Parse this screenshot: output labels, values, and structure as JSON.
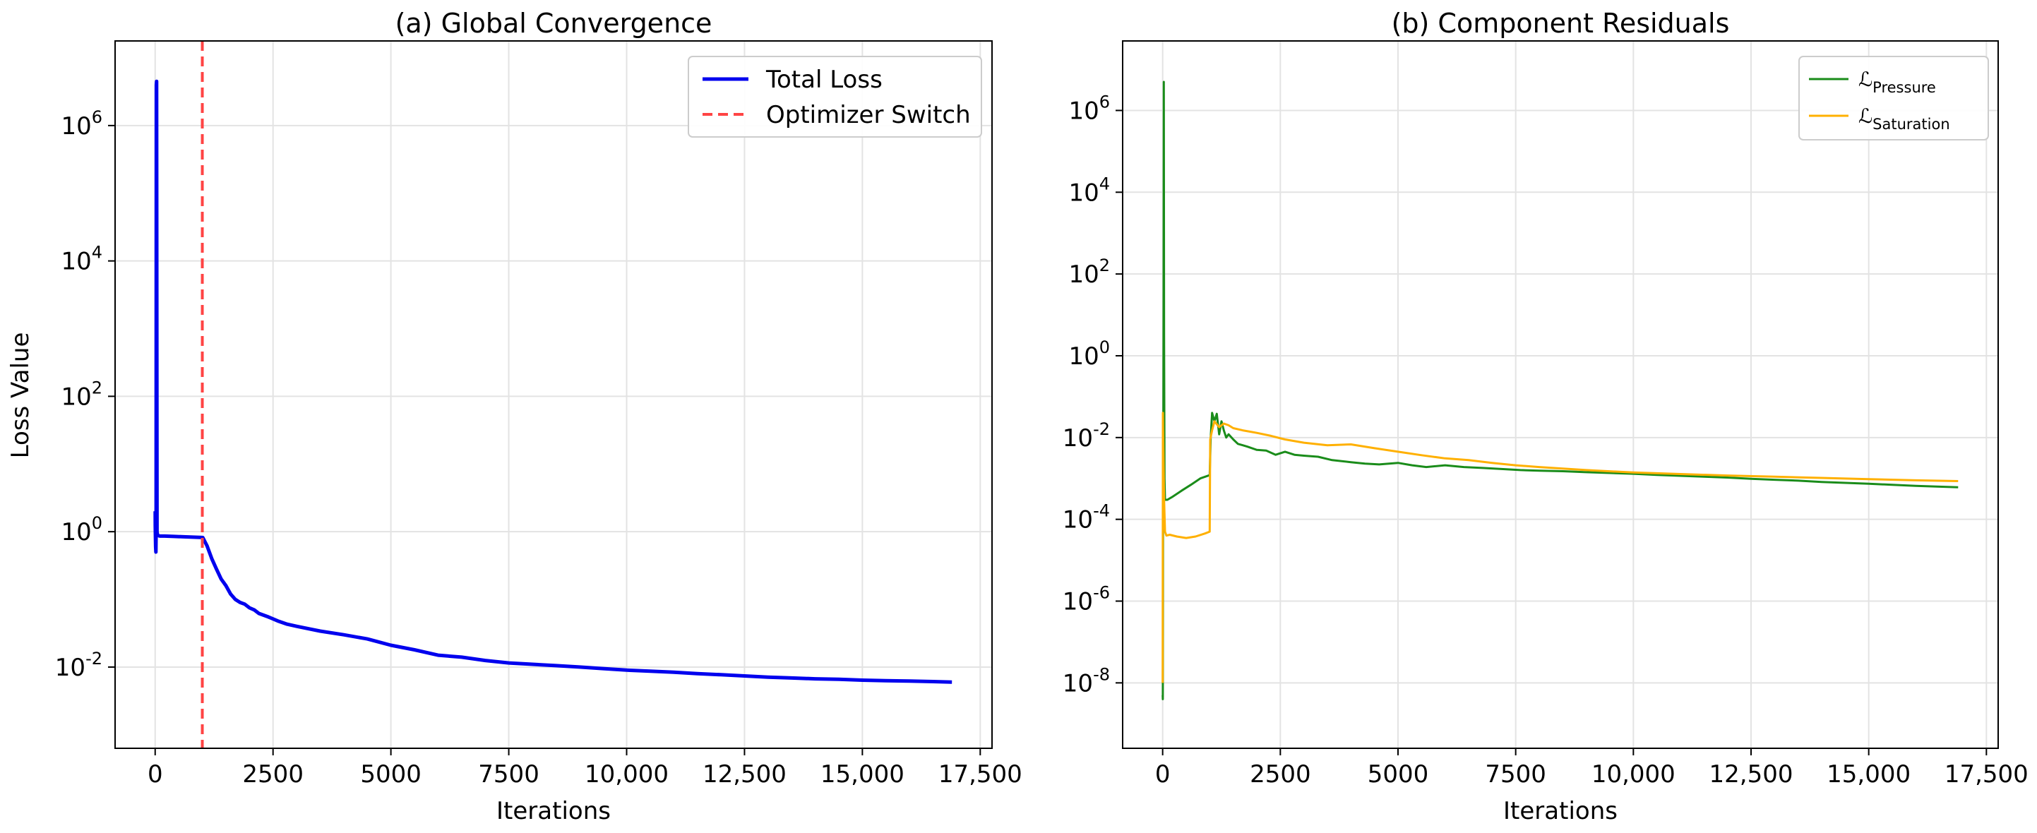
{
  "chart_data": [
    {
      "type": "line",
      "title": "(a) Global Convergence",
      "xlabel": "Iterations",
      "ylabel": "Loss Value",
      "yscale": "log",
      "xlim": [
        -850,
        17750
      ],
      "ylim_exp": [
        -3.2,
        7.25
      ],
      "grid": true,
      "legend_placement": "top-right",
      "xticks": [
        0,
        2500,
        5000,
        7500,
        10000,
        12500,
        15000,
        17500
      ],
      "xtick_labels": [
        "0",
        "2500",
        "5000",
        "7500",
        "10,000",
        "12,500",
        "15,000",
        "17,500"
      ],
      "yticks_exp": [
        -2,
        0,
        2,
        4,
        6
      ],
      "ytick_labels": [
        "-2",
        "0",
        "2",
        "4",
        "6"
      ],
      "ytick_base": "10",
      "series": [
        {
          "name": "Total Loss",
          "color": "#0000ee",
          "style": "solid",
          "x": [
            0,
            2,
            5,
            10,
            15,
            20,
            25,
            30,
            40,
            50,
            60,
            80,
            100,
            200,
            400,
            600,
            800,
            1000,
            1010,
            1100,
            1200,
            1300,
            1400,
            1500,
            1600,
            1700,
            1800,
            1900,
            2000,
            2100,
            2200,
            2400,
            2600,
            2800,
            3000,
            3500,
            4000,
            4500,
            5000,
            5500,
            6000,
            6500,
            7000,
            7500,
            8000,
            8500,
            9000,
            9500,
            10000,
            10500,
            11000,
            11500,
            12000,
            12500,
            13000,
            13500,
            14000,
            14500,
            15000,
            15500,
            16000,
            16500,
            16900
          ],
          "y": [
            2.0,
            1.2,
            0.9,
            0.6,
            0.5,
            1.0,
            4000000,
            4500000,
            1.0,
            0.9,
            0.88,
            0.87,
            0.86,
            0.86,
            0.85,
            0.84,
            0.83,
            0.82,
            0.82,
            0.62,
            0.4,
            0.28,
            0.2,
            0.16,
            0.12,
            0.1,
            0.09,
            0.085,
            0.075,
            0.07,
            0.062,
            0.055,
            0.048,
            0.043,
            0.04,
            0.034,
            0.03,
            0.026,
            0.021,
            0.018,
            0.015,
            0.014,
            0.0125,
            0.0115,
            0.011,
            0.0105,
            0.01,
            0.0095,
            0.009,
            0.0087,
            0.0084,
            0.008,
            0.0077,
            0.0074,
            0.0071,
            0.0069,
            0.0067,
            0.0066,
            0.0064,
            0.0063,
            0.0062,
            0.0061,
            0.006
          ]
        },
        {
          "name": "Optimizer Switch",
          "color": "#ff4444",
          "style": "dashed",
          "orientation": "vertical",
          "x_value": 1000
        }
      ]
    },
    {
      "type": "line",
      "title": "(b) Component Residuals",
      "xlabel": "Iterations",
      "ylabel": "",
      "yscale": "log",
      "xlim": [
        -850,
        17750
      ],
      "ylim_exp": [
        -9.6,
        7.7
      ],
      "grid": true,
      "legend_placement": "top-right",
      "xticks": [
        0,
        2500,
        5000,
        7500,
        10000,
        12500,
        15000,
        17500
      ],
      "xtick_labels": [
        "0",
        "2500",
        "5000",
        "7500",
        "10,000",
        "12,500",
        "15,000",
        "17,500"
      ],
      "yticks_exp": [
        -8,
        -6,
        -4,
        -2,
        0,
        2,
        4,
        6
      ],
      "ytick_labels": [
        "-8",
        "-6",
        "-4",
        "-2",
        "0",
        "2",
        "4",
        "6"
      ],
      "ytick_base": "10",
      "series": [
        {
          "name": "ℒ",
          "subscript": "Pressure",
          "color": "#1a8c1a",
          "style": "solid",
          "x": [
            0,
            3,
            6,
            10,
            15,
            20,
            25,
            30,
            40,
            50,
            100,
            200,
            400,
            600,
            800,
            1000,
            1020,
            1050,
            1100,
            1150,
            1200,
            1250,
            1300,
            1350,
            1400,
            1500,
            1600,
            1700,
            1800,
            2000,
            2200,
            2400,
            2600,
            2800,
            3000,
            3300,
            3600,
            4000,
            4300,
            4600,
            5000,
            5300,
            5600,
            6000,
            6400,
            6800,
            7200,
            7600,
            8000,
            8500,
            9000,
            9500,
            10000,
            10500,
            11000,
            11500,
            12000,
            12500,
            13000,
            13500,
            14000,
            14500,
            15000,
            15500,
            16000,
            16500,
            16900
          ],
          "y": [
            5e-09,
            4e-09,
            5e-07,
            0.0003,
            0.06,
            40,
            5000000,
            3,
            0.001,
            0.0003,
            0.0003,
            0.00035,
            0.0005,
            0.0007,
            0.001,
            0.0012,
            0.01,
            0.04,
            0.025,
            0.038,
            0.012,
            0.025,
            0.015,
            0.01,
            0.012,
            0.009,
            0.007,
            0.0065,
            0.006,
            0.005,
            0.0048,
            0.0038,
            0.0045,
            0.0038,
            0.0036,
            0.0034,
            0.0028,
            0.0025,
            0.0023,
            0.0022,
            0.0024,
            0.0021,
            0.0019,
            0.0021,
            0.0019,
            0.0018,
            0.0017,
            0.0016,
            0.00155,
            0.0015,
            0.00142,
            0.00136,
            0.0013,
            0.00122,
            0.00116,
            0.0011,
            0.00105,
            0.00098,
            0.00093,
            0.00088,
            0.00082,
            0.00078,
            0.00074,
            0.0007,
            0.00066,
            0.00063,
            0.00061
          ]
        },
        {
          "name": "ℒ",
          "subscript": "Saturation",
          "color": "#ffb000",
          "style": "solid",
          "x": [
            0,
            5,
            10,
            20,
            30,
            50,
            80,
            150,
            300,
            500,
            700,
            900,
            1000,
            1010,
            1050,
            1100,
            1200,
            1300,
            1400,
            1500,
            1700,
            2000,
            2300,
            2600,
            3000,
            3500,
            4000,
            4500,
            5000,
            5500,
            6000,
            6500,
            7000,
            7500,
            8000,
            9000,
            10000,
            11000,
            12000,
            13000,
            14000,
            15000,
            16000,
            16900
          ],
          "y": [
            1e-08,
            0.04,
            0.015,
            0.002,
            0.0003,
            5e-05,
            4e-05,
            4.2e-05,
            3.8e-05,
            3.5e-05,
            3.8e-05,
            4.5e-05,
            5e-05,
            0.009,
            0.015,
            0.025,
            0.018,
            0.022,
            0.02,
            0.017,
            0.015,
            0.013,
            0.011,
            0.009,
            0.0075,
            0.0065,
            0.0068,
            0.0055,
            0.0045,
            0.0037,
            0.0031,
            0.0028,
            0.0024,
            0.0021,
            0.0019,
            0.0016,
            0.0014,
            0.00128,
            0.00118,
            0.0011,
            0.00103,
            0.00096,
            0.0009,
            0.00086
          ]
        }
      ]
    }
  ]
}
